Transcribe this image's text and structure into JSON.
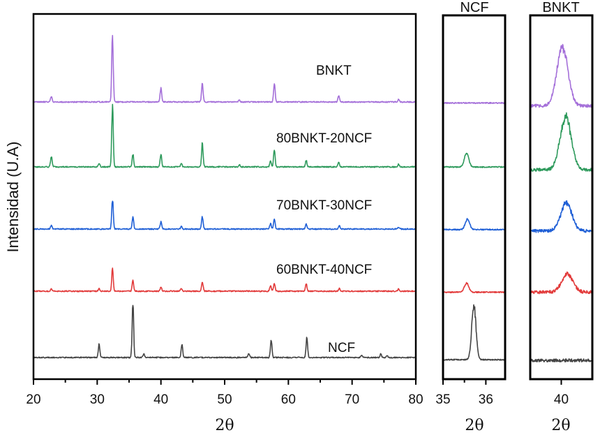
{
  "chart_data": [
    {
      "type": "line",
      "panel": "main",
      "xlabel": "2θ",
      "ylabel": "Intensidad (U.A)",
      "xlim": [
        20,
        80
      ],
      "xticks": [
        "20",
        "30",
        "40",
        "50",
        "60",
        "70",
        "80"
      ],
      "ylim": [
        0,
        523
      ],
      "grid": false,
      "series": [
        {
          "name": "BNKT",
          "label": "BNKT",
          "color": "#a46fd9",
          "offset": 397,
          "peaks": [
            [
              22.8,
              8
            ],
            [
              32.4,
              94
            ],
            [
              40.0,
              20
            ],
            [
              46.5,
              27
            ],
            [
              52.3,
              3
            ],
            [
              57.8,
              26
            ],
            [
              67.9,
              9
            ],
            [
              77.3,
              4
            ]
          ]
        },
        {
          "name": "80BNKT-20NCF",
          "label": "80BNKT-20NCF",
          "color": "#2e9a5c",
          "offset": 304,
          "peaks": [
            [
              22.8,
              15
            ],
            [
              30.3,
              5
            ],
            [
              32.4,
              87
            ],
            [
              35.6,
              18
            ],
            [
              40.0,
              18
            ],
            [
              43.2,
              5
            ],
            [
              46.5,
              34
            ],
            [
              52.3,
              3
            ],
            [
              57.2,
              8
            ],
            [
              57.8,
              24
            ],
            [
              62.8,
              9
            ],
            [
              67.9,
              7
            ],
            [
              77.3,
              4
            ]
          ]
        },
        {
          "name": "70BNKT-30NCF",
          "label": "70BNKT-30NCF",
          "color": "#1f5fd6",
          "offset": 215,
          "peaks": [
            [
              22.8,
              5
            ],
            [
              32.4,
              43
            ],
            [
              35.6,
              17
            ],
            [
              40.0,
              10
            ],
            [
              43.2,
              4
            ],
            [
              46.5,
              18
            ],
            [
              57.2,
              8
            ],
            [
              57.8,
              15
            ],
            [
              62.8,
              7
            ],
            [
              68.0,
              5
            ],
            [
              77.3,
              3
            ]
          ]
        },
        {
          "name": "60BNKT-40NCF",
          "label": "60BNKT-40NCF",
          "color": "#e23a3a",
          "offset": 126,
          "peaks": [
            [
              22.8,
              3
            ],
            [
              30.3,
              4
            ],
            [
              32.4,
              31
            ],
            [
              35.6,
              16
            ],
            [
              40.0,
              6
            ],
            [
              43.2,
              4
            ],
            [
              46.5,
              13
            ],
            [
              57.2,
              8
            ],
            [
              57.8,
              11
            ],
            [
              62.8,
              11
            ],
            [
              68.0,
              4
            ],
            [
              77.3,
              3
            ]
          ]
        },
        {
          "name": "NCF",
          "label": "NCF",
          "color": "#444444",
          "offset": 31,
          "peaks": [
            [
              30.3,
              19
            ],
            [
              35.6,
              78
            ],
            [
              37.3,
              5
            ],
            [
              43.3,
              19
            ],
            [
              53.8,
              6
            ],
            [
              57.3,
              25
            ],
            [
              62.9,
              30
            ],
            [
              71.5,
              3
            ],
            [
              74.5,
              5
            ],
            [
              75.5,
              3
            ]
          ]
        }
      ]
    },
    {
      "type": "line",
      "panel": "inset-ncf",
      "title": "NCF",
      "xlabel": "2θ",
      "xlim": [
        35,
        36.45
      ],
      "xticks": [
        "35",
        "36"
      ],
      "ylim": [
        0,
        523
      ],
      "series": [
        {
          "name": "BNKT",
          "color": "#a46fd9",
          "offset": 397,
          "peaks": []
        },
        {
          "name": "80BNKT-20NCF",
          "color": "#2e9a5c",
          "offset": 305,
          "peaks": [
            [
              35.55,
              20
            ]
          ]
        },
        {
          "name": "70BNKT-30NCF",
          "color": "#1f5fd6",
          "offset": 215,
          "peaks": [
            [
              35.57,
              15
            ]
          ]
        },
        {
          "name": "60BNKT-40NCF",
          "color": "#e23a3a",
          "offset": 125,
          "peaks": [
            [
              35.55,
              13
            ]
          ]
        },
        {
          "name": "NCF",
          "color": "#444444",
          "offset": 28,
          "peaks": [
            [
              35.72,
              78
            ]
          ]
        }
      ]
    },
    {
      "type": "line",
      "panel": "inset-bnkt",
      "title": "BNKT",
      "xlabel": "2θ",
      "xlim": [
        39.5,
        40.5
      ],
      "xticks": [
        "40"
      ],
      "ylim": [
        0,
        523
      ],
      "series": [
        {
          "name": "BNKT",
          "color": "#a46fd9",
          "offset": 393,
          "peaks": [
            [
              40.02,
              84
            ]
          ]
        },
        {
          "name": "80BNKT-20NCF",
          "color": "#2e9a5c",
          "offset": 301,
          "peaks": [
            [
              40.07,
              76
            ]
          ]
        },
        {
          "name": "70BNKT-30NCF",
          "color": "#1f5fd6",
          "offset": 213,
          "peaks": [
            [
              40.08,
              40
            ]
          ]
        },
        {
          "name": "60BNKT-40NCF",
          "color": "#e23a3a",
          "offset": 125,
          "peaks": [
            [
              40.1,
              26
            ]
          ]
        },
        {
          "name": "NCF",
          "color": "#444444",
          "offset": 27,
          "peaks": []
        }
      ]
    }
  ]
}
